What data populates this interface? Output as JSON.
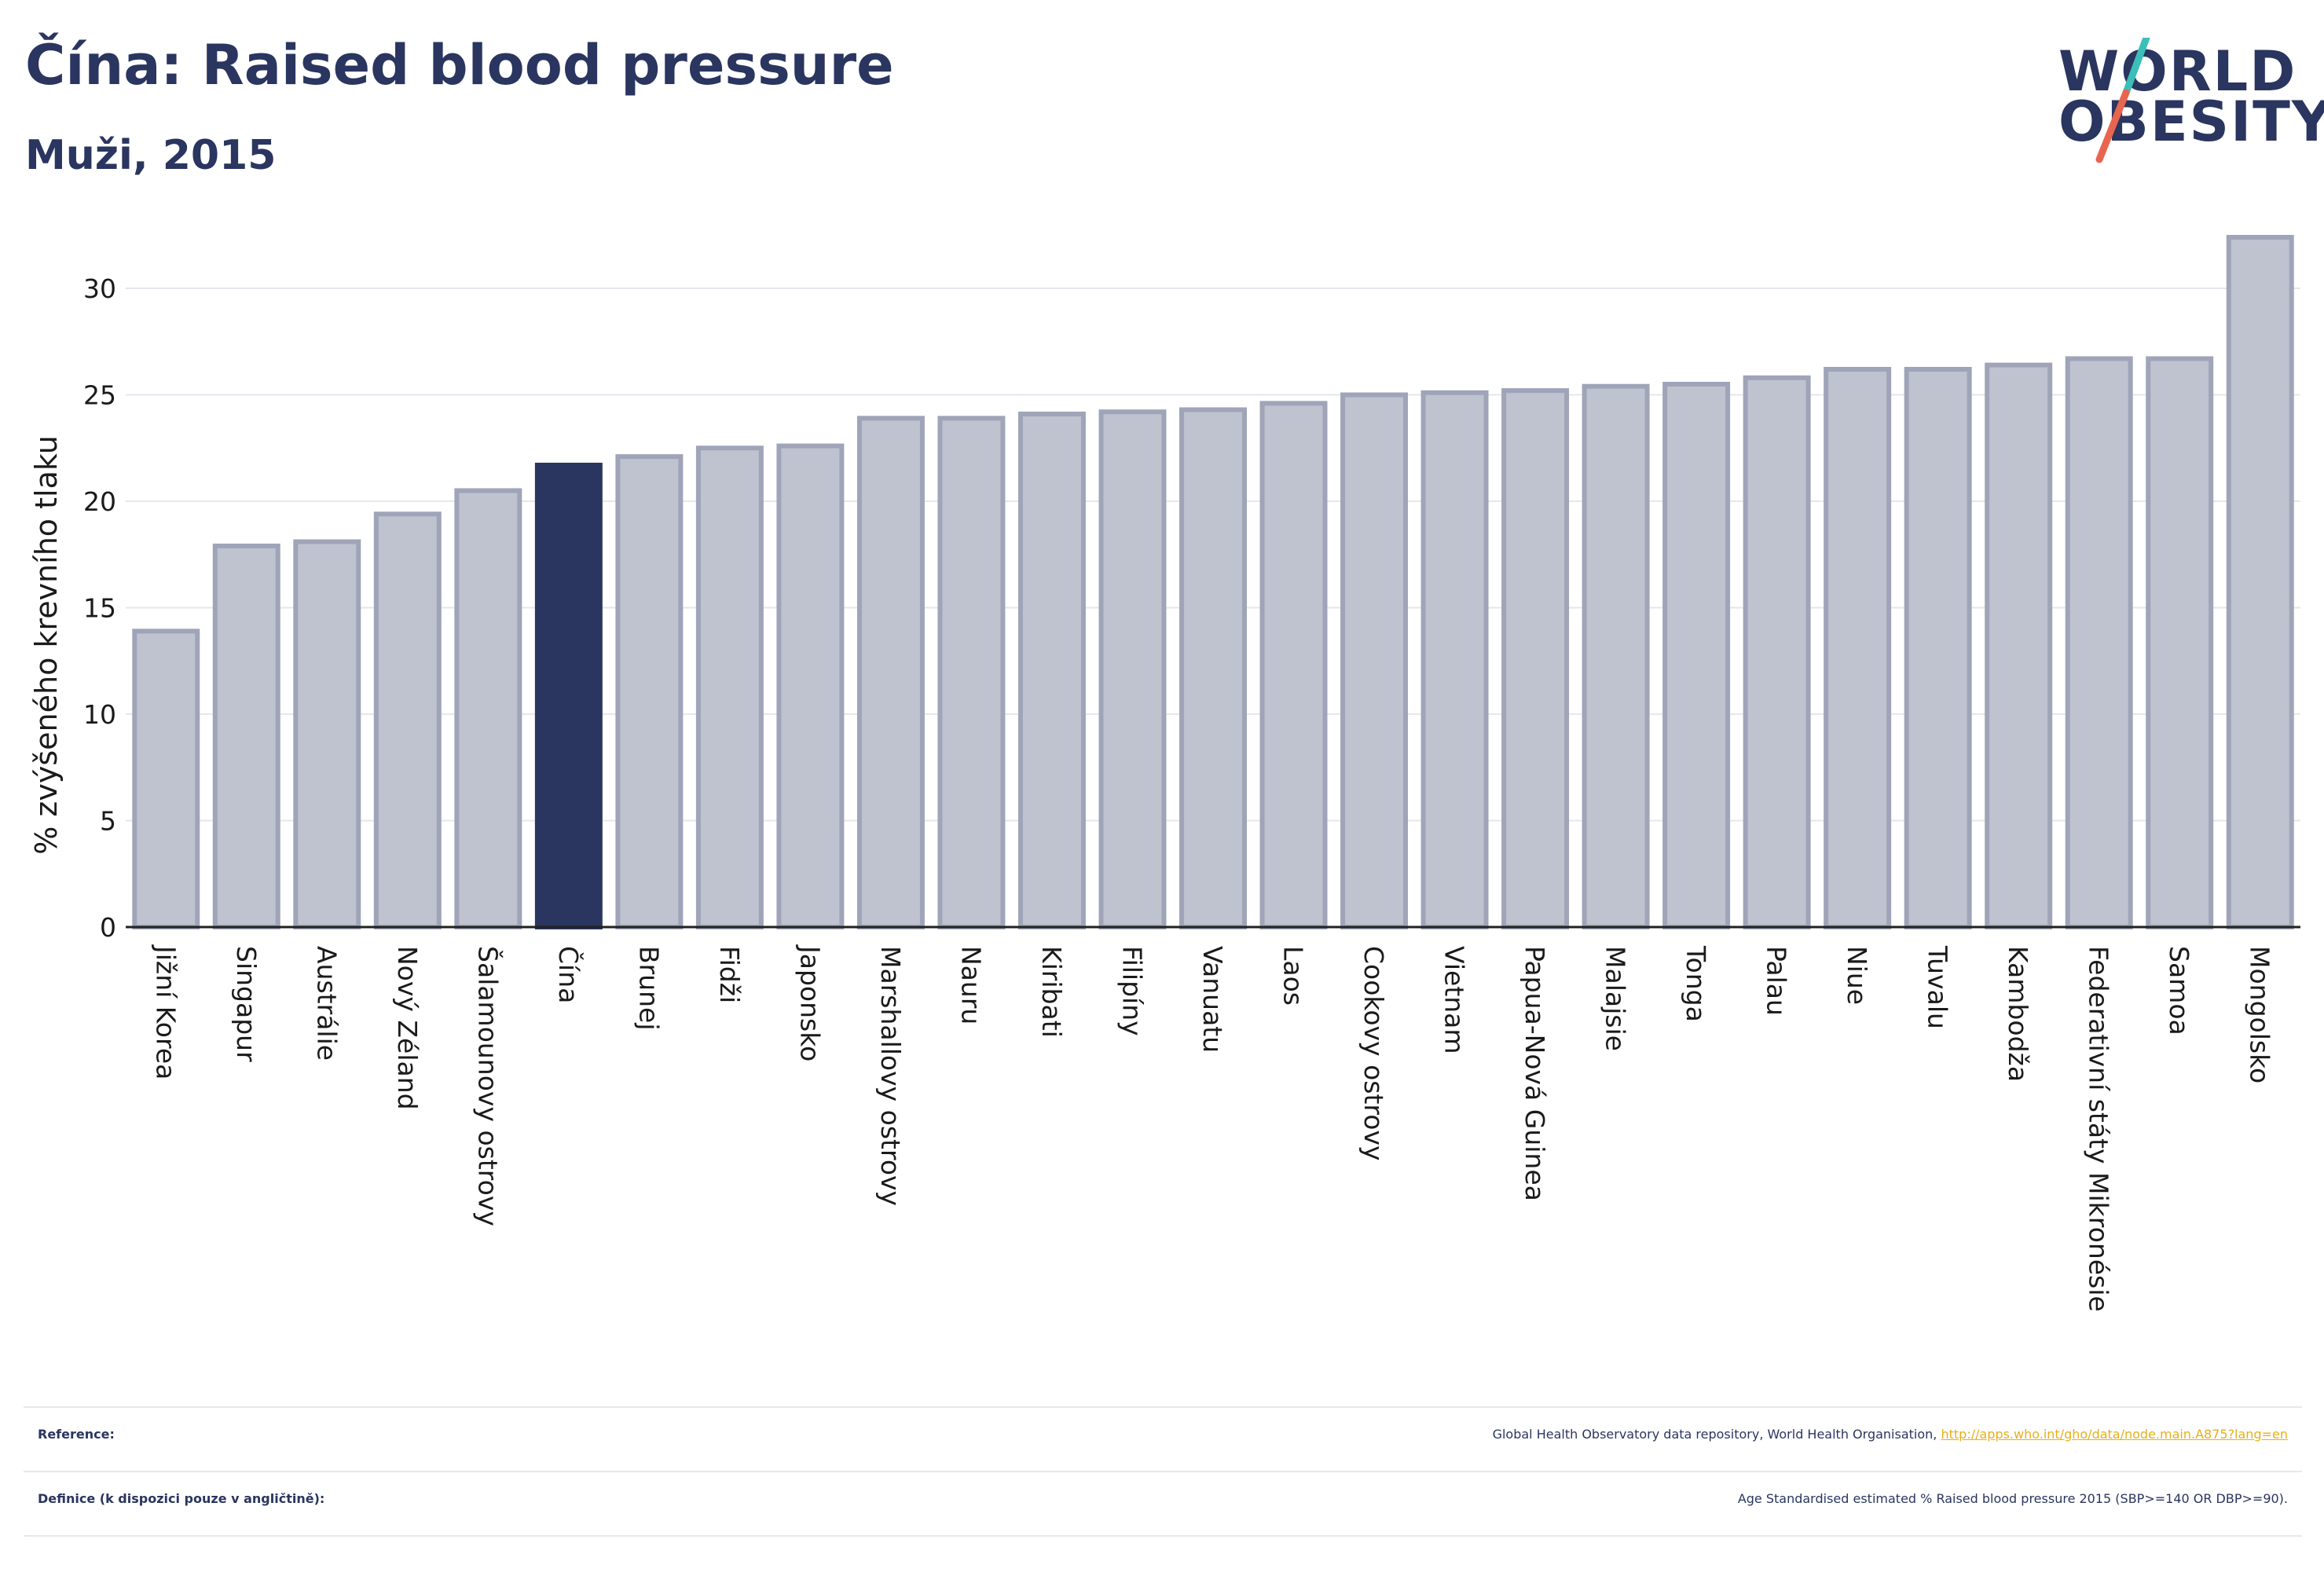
{
  "header": {
    "title": "Čína: Raised blood pressure",
    "subtitle": "Muži, 2015"
  },
  "logo": {
    "line1": "WORLD",
    "line2": "OBESITY",
    "slash_colors": [
      "#3bbfb8",
      "#e8654f"
    ]
  },
  "colors": {
    "highlight": "#2a3560",
    "bar": "#bfc2cf",
    "bar_border": "#9fa4b8",
    "link": "#e6b019"
  },
  "chart_data": {
    "type": "bar",
    "ylabel": "% zvýšeného krevního tlaku",
    "ylim": [
      0,
      33
    ],
    "yticks": [
      0,
      5,
      10,
      15,
      20,
      25,
      30
    ],
    "grid": true,
    "highlight": "Čína",
    "categories": [
      "Jižní Korea",
      "Singapur",
      "Austrálie",
      "Nový Zéland",
      "Šalamounovy ostrovy",
      "Čína",
      "Brunej",
      "Fidži",
      "Japonsko",
      "Marshallovy ostrovy",
      "Nauru",
      "Kiribati",
      "Filipíny",
      "Vanuatu",
      "Laos",
      "Cookovy ostrovy",
      "Vietnam",
      "Papua-Nová Guinea",
      "Malajsie",
      "Tonga",
      "Palau",
      "Niue",
      "Tuvalu",
      "Kambodža",
      "Federativní státy Mikronésie",
      "Samoa",
      "Mongolsko"
    ],
    "values": [
      13.9,
      17.9,
      18.1,
      19.4,
      20.5,
      21.7,
      22.1,
      22.5,
      22.6,
      23.9,
      23.9,
      24.1,
      24.2,
      24.3,
      24.6,
      25.0,
      25.1,
      25.2,
      25.4,
      25.5,
      25.8,
      26.2,
      26.2,
      26.4,
      26.7,
      26.7,
      32.4
    ]
  },
  "footer": {
    "reference_label": "Reference:",
    "reference_text": "Global Health Observatory data repository, World Health Organisation,",
    "reference_link": "http://apps.who.int/gho/data/node.main.A875?lang=en",
    "definition_label": "Definice (k dispozici pouze v angličtině):",
    "definition_text": "Age Standardised estimated % Raised blood pressure 2015 (SBP>=140 OR DBP>=90)."
  }
}
